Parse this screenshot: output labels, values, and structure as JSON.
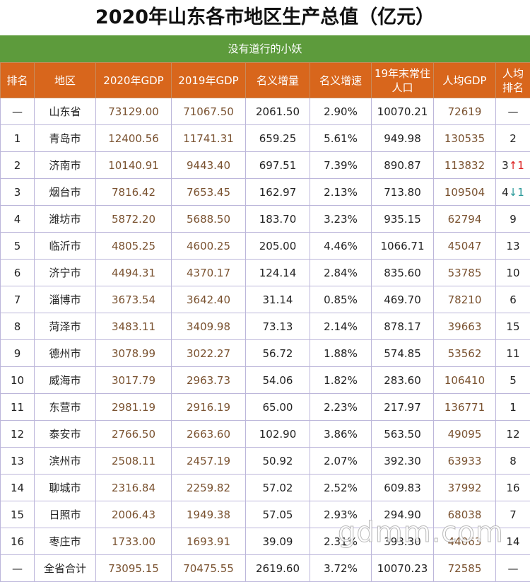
{
  "header": {
    "title": "2020年山东各市地区生产总值（亿元）",
    "subtitle": "没有道行的小妖"
  },
  "table": {
    "columns": [
      "排名",
      "地区",
      "2020年GDP",
      "2019年GDP",
      "名义增量",
      "名义增速",
      "19年末常住人口",
      "人均GDP",
      "人均排名"
    ],
    "rows": [
      {
        "cells": [
          "—",
          "山东省",
          "73129.00",
          "71067.50",
          "2061.50",
          "2.90%",
          "10070.21",
          "72619",
          "—"
        ]
      },
      {
        "cells": [
          "1",
          "青岛市",
          "12400.56",
          "11741.31",
          "659.25",
          "5.61%",
          "949.98",
          "130535",
          "2"
        ]
      },
      {
        "cells": [
          "2",
          "济南市",
          "10140.91",
          "9443.40",
          "697.51",
          "7.39%",
          "890.87",
          "113832",
          "3"
        ],
        "change": "↑1"
      },
      {
        "cells": [
          "3",
          "烟台市",
          "7816.42",
          "7653.45",
          "162.97",
          "2.13%",
          "713.80",
          "109504",
          "4"
        ],
        "change": "↓1"
      },
      {
        "cells": [
          "4",
          "潍坊市",
          "5872.20",
          "5688.50",
          "183.70",
          "3.23%",
          "935.15",
          "62794",
          "9"
        ]
      },
      {
        "cells": [
          "5",
          "临沂市",
          "4805.25",
          "4600.25",
          "205.00",
          "4.46%",
          "1066.71",
          "45047",
          "13"
        ]
      },
      {
        "cells": [
          "6",
          "济宁市",
          "4494.31",
          "4370.17",
          "124.14",
          "2.84%",
          "835.60",
          "53785",
          "10"
        ]
      },
      {
        "cells": [
          "7",
          "淄博市",
          "3673.54",
          "3642.40",
          "31.14",
          "0.85%",
          "469.70",
          "78210",
          "6"
        ]
      },
      {
        "cells": [
          "8",
          "菏泽市",
          "3483.11",
          "3409.98",
          "73.13",
          "2.14%",
          "878.17",
          "39663",
          "15"
        ]
      },
      {
        "cells": [
          "9",
          "德州市",
          "3078.99",
          "3022.27",
          "56.72",
          "1.88%",
          "574.85",
          "53562",
          "11"
        ]
      },
      {
        "cells": [
          "10",
          "威海市",
          "3017.79",
          "2963.73",
          "54.06",
          "1.82%",
          "283.60",
          "106410",
          "5"
        ]
      },
      {
        "cells": [
          "11",
          "东营市",
          "2981.19",
          "2916.19",
          "65.00",
          "2.23%",
          "217.97",
          "136771",
          "1"
        ]
      },
      {
        "cells": [
          "12",
          "泰安市",
          "2766.50",
          "2663.60",
          "102.90",
          "3.86%",
          "563.50",
          "49095",
          "12"
        ]
      },
      {
        "cells": [
          "13",
          "滨州市",
          "2508.11",
          "2457.19",
          "50.92",
          "2.07%",
          "392.30",
          "63933",
          "8"
        ]
      },
      {
        "cells": [
          "14",
          "聊城市",
          "2316.84",
          "2259.82",
          "57.02",
          "2.52%",
          "609.83",
          "37992",
          "16"
        ]
      },
      {
        "cells": [
          "15",
          "日照市",
          "2006.43",
          "1949.38",
          "57.05",
          "2.93%",
          "294.90",
          "68038",
          "7"
        ]
      },
      {
        "cells": [
          "16",
          "枣庄市",
          "1733.00",
          "1693.91",
          "39.09",
          "2.31%",
          "393.30",
          "44063",
          "14"
        ]
      },
      {
        "cells": [
          "—",
          "全省合计",
          "73095.15",
          "70475.55",
          "2619.60",
          "3.72%",
          "10070.23",
          "72585",
          "—"
        ]
      }
    ]
  },
  "watermark": "gdmm.com"
}
